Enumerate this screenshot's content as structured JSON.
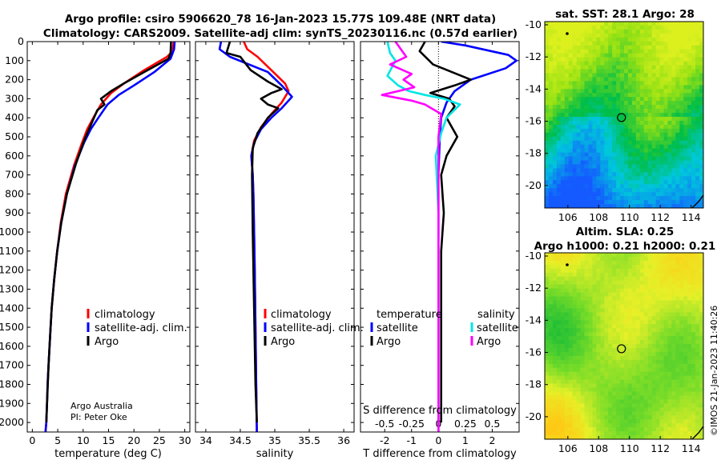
{
  "figure": {
    "title_line1": "Argo profile: csiro 5906620_78 16-Jan-2023 15.77S 109.48E (NRT data)",
    "title_line2": "Climatology: CARS2009. Satellite-adj clim: synTS_20230116.nc (0.57d earlier)",
    "credit_line1": "Argo Australia",
    "credit_line2": "PI: Peter Oke",
    "watermark": "©IMOS 21-Jan-2023 11:40:26"
  },
  "colors": {
    "climatology": "#ff0000",
    "satellite": "#0000ff",
    "argo": "#000000",
    "sal_satellite": "#00e5e5",
    "sal_argo": "#ff00ff"
  },
  "chart_data": [
    {
      "type": "line",
      "id": "temperature",
      "xlabel": "temperature (deg C)",
      "ylabel": "",
      "xlim": [
        -1,
        31
      ],
      "ylim": [
        2050,
        0
      ],
      "xticks": [
        0,
        5,
        10,
        15,
        20,
        25,
        30
      ],
      "yticks": [
        0,
        100,
        200,
        300,
        400,
        500,
        600,
        700,
        800,
        900,
        1000,
        1100,
        1200,
        1300,
        1400,
        1500,
        1600,
        1700,
        1800,
        1900,
        2000
      ],
      "legend": [
        "climatology",
        "satellite-adj. clim.",
        "Argo"
      ],
      "series": [
        {
          "name": "climatology",
          "x": [
            27.8,
            27.6,
            26.5,
            22,
            18,
            15.5,
            13.5,
            12,
            10.8,
            9.8,
            8.2,
            6.6,
            5.6,
            4.9,
            4.3,
            3.8,
            3.5,
            3.2,
            3.0,
            2.9,
            2.75,
            2.6
          ],
          "y": [
            0,
            50,
            80,
            150,
            220,
            270,
            330,
            400,
            460,
            530,
            650,
            800,
            950,
            1100,
            1250,
            1400,
            1550,
            1700,
            1800,
            1900,
            2000,
            2050
          ]
        },
        {
          "name": "satellite-adj. clim.",
          "x": [
            28.0,
            27.9,
            27.2,
            24,
            20,
            17,
            14.8,
            13,
            11.5,
            10.2,
            8.4,
            6.8,
            5.7,
            4.9,
            4.3,
            3.8,
            3.5,
            3.2,
            3.0,
            2.9,
            2.75,
            2.6
          ],
          "y": [
            0,
            40,
            90,
            160,
            230,
            280,
            330,
            400,
            460,
            530,
            650,
            800,
            950,
            1100,
            1250,
            1400,
            1550,
            1700,
            1800,
            1900,
            2000,
            2050
          ]
        },
        {
          "name": "Argo",
          "x": [
            27.3,
            27.2,
            26.8,
            22,
            18,
            15.5,
            14.5,
            13.5,
            14.2,
            12.8,
            11.8,
            10.2,
            8.6,
            6.8,
            5.7,
            4.9,
            4.3,
            3.8,
            3.5,
            3.2,
            2.9,
            2.75
          ],
          "y": [
            0,
            60,
            90,
            160,
            220,
            260,
            280,
            300,
            330,
            360,
            420,
            520,
            640,
            800,
            950,
            1100,
            1250,
            1400,
            1550,
            1700,
            1900,
            2000
          ]
        }
      ]
    },
    {
      "type": "line",
      "id": "salinity",
      "xlabel": "salinity",
      "ylabel": "",
      "xlim": [
        33.85,
        36.15
      ],
      "ylim": [
        2050,
        0
      ],
      "xticks": [
        34,
        34.5,
        35,
        35.5,
        36
      ],
      "legend": [
        "climatology",
        "satellite-adj. clim.",
        "Argo"
      ],
      "series": [
        {
          "name": "climatology",
          "x": [
            34.55,
            34.6,
            34.75,
            34.95,
            35.15,
            35.2,
            35.1,
            34.95,
            34.8,
            34.7,
            34.66,
            34.68,
            34.69,
            34.7,
            34.71,
            34.72,
            34.73,
            34.74
          ],
          "y": [
            0,
            40,
            80,
            150,
            220,
            260,
            320,
            380,
            450,
            520,
            600,
            700,
            800,
            1000,
            1200,
            1500,
            1800,
            2050
          ]
        },
        {
          "name": "satellite-adj. clim.",
          "x": [
            34.22,
            34.2,
            34.35,
            34.9,
            35.1,
            35.25,
            35.1,
            34.95,
            34.8,
            34.7,
            34.66,
            34.68,
            34.69,
            34.7,
            34.71,
            34.72,
            34.73,
            34.74
          ],
          "y": [
            0,
            40,
            80,
            160,
            230,
            290,
            350,
            400,
            460,
            530,
            600,
            700,
            800,
            1000,
            1200,
            1500,
            1800,
            2050
          ]
        },
        {
          "name": "Argo",
          "x": [
            34.35,
            34.3,
            34.5,
            34.65,
            34.9,
            35.1,
            34.95,
            34.8,
            34.9,
            35.05,
            34.9,
            34.75,
            34.68,
            34.67,
            34.68,
            34.7,
            34.72,
            34.74
          ],
          "y": [
            0,
            60,
            80,
            150,
            210,
            250,
            270,
            300,
            330,
            350,
            400,
            480,
            560,
            700,
            1000,
            1400,
            1800,
            2000
          ]
        }
      ]
    },
    {
      "type": "line",
      "id": "difference",
      "xlabel": "T difference from climatology",
      "xlabel_top": "S difference from climatology",
      "xlim": [
        -2.9,
        3.0
      ],
      "ylim": [
        2050,
        0
      ],
      "xticks": [
        -2,
        -1,
        0,
        1,
        2
      ],
      "sticks": [
        -0.5,
        -0.25,
        0,
        0.25,
        0.5
      ],
      "sticklabels": [
        "-0.5",
        "-0.25",
        "0",
        "0.25",
        "0.5"
      ],
      "legend_title_left": "temperature",
      "legend_title_right": "salinity",
      "legend": [
        "satellite",
        "Argo",
        "satellite",
        "Argo"
      ],
      "series": [
        {
          "name": "temperature satellite",
          "x": [
            0.1,
            1.0,
            2.6,
            2.9,
            2.5,
            1.2,
            0.6,
            0.3,
            0.1,
            0.05,
            0.0,
            0.0,
            0.0
          ],
          "y": [
            0,
            20,
            70,
            100,
            140,
            200,
            260,
            320,
            400,
            500,
            700,
            1200,
            2050
          ]
        },
        {
          "name": "temperature Argo",
          "x": [
            -0.5,
            -0.7,
            -0.2,
            1.2,
            0.6,
            -0.3,
            0.4,
            0.6,
            0.3,
            0.7,
            0.3,
            0.1,
            0.2,
            0.1,
            0.1,
            0.1
          ],
          "y": [
            0,
            50,
            120,
            200,
            230,
            270,
            300,
            340,
            400,
            500,
            600,
            700,
            900,
            1100,
            1500,
            2000
          ]
        },
        {
          "name": "salinity satellite",
          "x": [
            -1.9,
            -1.8,
            -1.6,
            -1.9,
            -1.5,
            -1.1,
            -0.5,
            0.2,
            0.8,
            0.3,
            0.1,
            -0.1,
            0.0,
            0.0
          ],
          "y": [
            0,
            60,
            100,
            180,
            230,
            260,
            280,
            300,
            330,
            400,
            480,
            600,
            900,
            2050
          ]
        },
        {
          "name": "salinity Argo",
          "x": [
            -1.6,
            -1.2,
            -1.8,
            -1.0,
            -1.3,
            -0.9,
            -2.1,
            -1.0,
            -0.5,
            0.1,
            0.0,
            0.0,
            0.0
          ],
          "y": [
            0,
            80,
            120,
            170,
            200,
            240,
            280,
            310,
            330,
            380,
            500,
            800,
            2050
          ]
        }
      ]
    },
    {
      "type": "heatmap",
      "id": "sst_map",
      "title": "sat. SST: 28.1 Argo: 28",
      "xlim": [
        104.5,
        114.8
      ],
      "ylim": [
        -21.4,
        -9.8
      ],
      "xticks": [
        106,
        108,
        110,
        112,
        114
      ],
      "yticks": [
        -10,
        -12,
        -14,
        -16,
        -18,
        -20
      ],
      "marker": {
        "lon": 109.48,
        "lat": -15.77
      }
    },
    {
      "type": "heatmap",
      "id": "sla_map",
      "title_line1": "Altim. SLA: 0.25",
      "title_line2": "Argo h1000: 0.21 h2000: 0.21",
      "xlim": [
        104.5,
        114.8
      ],
      "ylim": [
        -21.4,
        -9.8
      ],
      "xticks": [
        106,
        108,
        110,
        112,
        114
      ],
      "yticks": [
        -10,
        -12,
        -14,
        -16,
        -18,
        -20
      ],
      "marker": {
        "lon": 109.48,
        "lat": -15.77
      }
    }
  ]
}
